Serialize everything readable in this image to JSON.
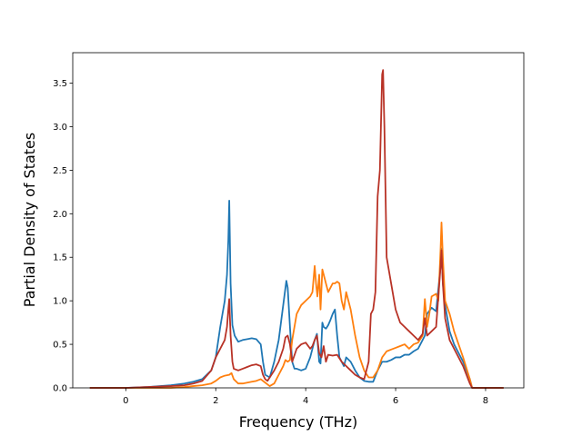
{
  "chart_data": {
    "type": "line",
    "title": "",
    "xlabel": "Frequency (THz)",
    "ylabel": "Partial Density of States",
    "xlim": [
      -1.18,
      8.85
    ],
    "ylim": [
      0,
      3.85
    ],
    "xticks": [
      0,
      2,
      4,
      6,
      8
    ],
    "xtick_labels": [
      "0",
      "2",
      "4",
      "6",
      "8"
    ],
    "yticks": [
      0,
      0.5,
      1.0,
      1.5,
      2.0,
      2.5,
      3.0,
      3.5
    ],
    "ytick_labels": [
      "0.0",
      "0.5",
      "1.0",
      "1.5",
      "2.0",
      "2.5",
      "3.0",
      "3.5"
    ],
    "grid": false,
    "legend": "none",
    "series": [
      {
        "color": "#1f77b4",
        "x": [
          -0.8,
          0,
          0.5,
          1.0,
          1.3,
          1.5,
          1.7,
          1.9,
          2.0,
          2.1,
          2.15,
          2.2,
          2.25,
          2.28,
          2.3,
          2.33,
          2.37,
          2.42,
          2.5,
          2.6,
          2.7,
          2.8,
          2.9,
          3.0,
          3.05,
          3.1,
          3.2,
          3.3,
          3.4,
          3.5,
          3.57,
          3.6,
          3.65,
          3.7,
          3.75,
          3.8,
          3.9,
          4.0,
          4.1,
          4.2,
          4.25,
          4.3,
          4.33,
          4.37,
          4.4,
          4.45,
          4.5,
          4.55,
          4.6,
          4.65,
          4.7,
          4.75,
          4.8,
          4.85,
          4.9,
          5.0,
          5.1,
          5.2,
          5.3,
          5.4,
          5.5,
          5.6,
          5.7,
          5.8,
          5.9,
          6.0,
          6.1,
          6.2,
          6.3,
          6.4,
          6.5,
          6.6,
          6.65,
          6.7,
          6.8,
          6.9,
          7.0,
          7.02,
          7.05,
          7.1,
          7.2,
          7.3,
          7.5,
          7.65,
          7.7,
          8.0,
          8.4
        ],
        "y": [
          0.0,
          0.0,
          0.01,
          0.03,
          0.05,
          0.07,
          0.1,
          0.2,
          0.35,
          0.7,
          0.85,
          1.0,
          1.3,
          1.7,
          2.15,
          1.2,
          0.72,
          0.6,
          0.53,
          0.55,
          0.56,
          0.57,
          0.56,
          0.5,
          0.3,
          0.15,
          0.12,
          0.3,
          0.55,
          0.95,
          1.23,
          1.15,
          0.7,
          0.3,
          0.22,
          0.22,
          0.2,
          0.22,
          0.35,
          0.55,
          0.62,
          0.3,
          0.28,
          0.75,
          0.7,
          0.68,
          0.72,
          0.78,
          0.85,
          0.9,
          0.6,
          0.35,
          0.3,
          0.25,
          0.35,
          0.3,
          0.2,
          0.12,
          0.08,
          0.07,
          0.07,
          0.2,
          0.3,
          0.3,
          0.32,
          0.35,
          0.35,
          0.38,
          0.38,
          0.42,
          0.45,
          0.55,
          0.6,
          0.85,
          0.92,
          0.88,
          1.4,
          1.6,
          1.2,
          0.95,
          0.65,
          0.5,
          0.3,
          0.1,
          0.0,
          0.0,
          0.0
        ]
      },
      {
        "color": "#ff7f0e",
        "x": [
          -0.8,
          0,
          0.5,
          1.0,
          1.3,
          1.5,
          1.7,
          1.9,
          2.0,
          2.1,
          2.2,
          2.3,
          2.35,
          2.4,
          2.5,
          2.6,
          2.7,
          2.8,
          2.9,
          3.0,
          3.1,
          3.15,
          3.2,
          3.3,
          3.4,
          3.5,
          3.55,
          3.6,
          3.65,
          3.7,
          3.8,
          3.9,
          4.0,
          4.1,
          4.15,
          4.2,
          4.23,
          4.26,
          4.3,
          4.33,
          4.37,
          4.4,
          4.45,
          4.5,
          4.55,
          4.6,
          4.65,
          4.7,
          4.75,
          4.8,
          4.85,
          4.9,
          4.95,
          5.0,
          5.1,
          5.2,
          5.3,
          5.4,
          5.5,
          5.6,
          5.7,
          5.8,
          5.9,
          6.0,
          6.1,
          6.2,
          6.3,
          6.4,
          6.5,
          6.6,
          6.65,
          6.7,
          6.75,
          6.8,
          6.9,
          6.95,
          7.0,
          7.02,
          7.05,
          7.1,
          7.2,
          7.3,
          7.5,
          7.65,
          7.7,
          8.0,
          8.4
        ],
        "y": [
          0.0,
          0.0,
          0.0,
          0.0,
          0.01,
          0.02,
          0.03,
          0.05,
          0.08,
          0.12,
          0.14,
          0.15,
          0.17,
          0.1,
          0.05,
          0.05,
          0.06,
          0.07,
          0.08,
          0.1,
          0.06,
          0.04,
          0.02,
          0.05,
          0.15,
          0.25,
          0.32,
          0.3,
          0.32,
          0.55,
          0.85,
          0.95,
          1.0,
          1.05,
          1.1,
          1.4,
          1.2,
          1.05,
          1.3,
          0.9,
          1.36,
          1.3,
          1.2,
          1.1,
          1.15,
          1.2,
          1.2,
          1.22,
          1.2,
          1.0,
          0.9,
          1.1,
          1.0,
          0.9,
          0.6,
          0.35,
          0.2,
          0.12,
          0.12,
          0.2,
          0.35,
          0.42,
          0.44,
          0.46,
          0.48,
          0.5,
          0.45,
          0.5,
          0.52,
          0.6,
          1.02,
          0.7,
          0.85,
          1.05,
          1.08,
          1.0,
          1.6,
          1.9,
          1.5,
          1.0,
          0.85,
          0.65,
          0.35,
          0.1,
          0.0,
          0.0,
          0.0
        ]
      },
      {
        "color": "#b83226",
        "x": [
          -0.8,
          0,
          0.5,
          1.0,
          1.3,
          1.5,
          1.7,
          1.9,
          2.0,
          2.1,
          2.2,
          2.25,
          2.28,
          2.3,
          2.33,
          2.37,
          2.4,
          2.5,
          2.6,
          2.7,
          2.8,
          2.9,
          3.0,
          3.05,
          3.1,
          3.15,
          3.2,
          3.3,
          3.4,
          3.5,
          3.55,
          3.6,
          3.65,
          3.7,
          3.8,
          3.9,
          4.0,
          4.1,
          4.15,
          4.2,
          4.25,
          4.3,
          4.35,
          4.4,
          4.45,
          4.5,
          4.6,
          4.7,
          4.8,
          4.9,
          5.0,
          5.1,
          5.2,
          5.3,
          5.4,
          5.45,
          5.5,
          5.55,
          5.6,
          5.65,
          5.7,
          5.72,
          5.75,
          5.8,
          5.9,
          6.0,
          6.1,
          6.2,
          6.3,
          6.4,
          6.5,
          6.6,
          6.65,
          6.7,
          6.8,
          6.9,
          7.0,
          7.02,
          7.05,
          7.1,
          7.2,
          7.3,
          7.5,
          7.65,
          7.7,
          8.0,
          8.4
        ],
        "y": [
          0.0,
          0.0,
          0.01,
          0.02,
          0.03,
          0.05,
          0.08,
          0.2,
          0.35,
          0.45,
          0.55,
          0.7,
          0.9,
          1.02,
          0.6,
          0.3,
          0.22,
          0.2,
          0.22,
          0.24,
          0.26,
          0.27,
          0.25,
          0.15,
          0.1,
          0.08,
          0.12,
          0.2,
          0.3,
          0.45,
          0.58,
          0.6,
          0.5,
          0.3,
          0.45,
          0.5,
          0.52,
          0.45,
          0.48,
          0.55,
          0.6,
          0.4,
          0.35,
          0.48,
          0.3,
          0.38,
          0.37,
          0.38,
          0.3,
          0.25,
          0.2,
          0.15,
          0.12,
          0.1,
          0.3,
          0.85,
          0.9,
          1.1,
          2.2,
          2.5,
          3.6,
          3.65,
          3.0,
          1.5,
          1.2,
          0.9,
          0.75,
          0.7,
          0.65,
          0.6,
          0.55,
          0.62,
          0.8,
          0.6,
          0.65,
          0.7,
          1.4,
          1.58,
          1.2,
          0.8,
          0.55,
          0.45,
          0.25,
          0.05,
          0.0,
          0.0,
          0.0
        ]
      }
    ]
  }
}
